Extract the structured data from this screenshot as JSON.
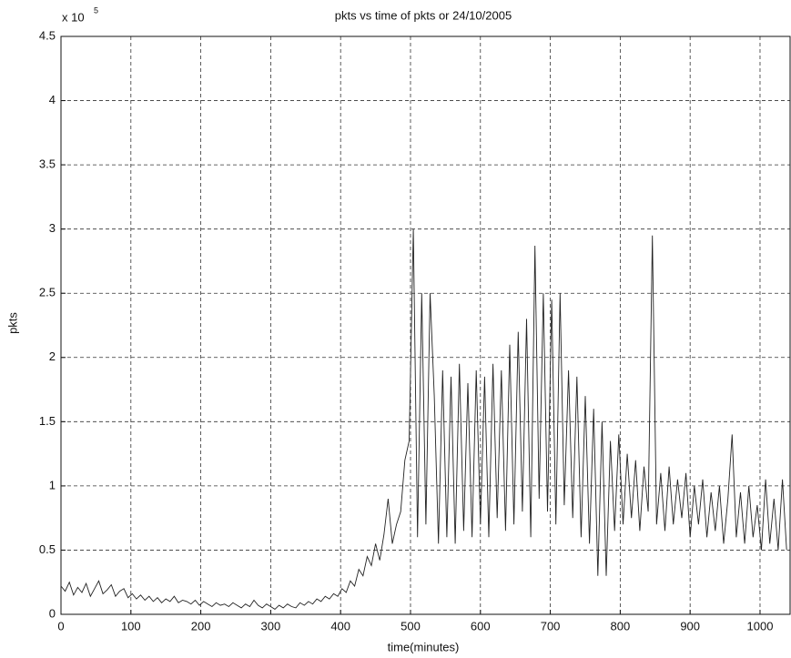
{
  "chart_data": {
    "type": "line",
    "title": "pkts vs time of pkts or 24/10/2005",
    "xlabel": "time(minutes)",
    "ylabel": "pkts",
    "y_multiplier": "x 10",
    "y_exponent": 5,
    "grid": true,
    "xlim": [
      0,
      1043
    ],
    "ylim": [
      0,
      4.5
    ],
    "xticks": [
      0,
      100,
      200,
      300,
      400,
      500,
      600,
      700,
      800,
      900,
      1000
    ],
    "yticks": [
      0,
      0.5,
      1,
      1.5,
      2,
      2.5,
      3,
      3.5,
      4,
      4.5
    ],
    "x": [
      0,
      6,
      12,
      18,
      24,
      30,
      36,
      42,
      48,
      54,
      60,
      66,
      72,
      78,
      84,
      90,
      96,
      102,
      108,
      114,
      120,
      126,
      132,
      138,
      144,
      150,
      156,
      162,
      168,
      174,
      180,
      186,
      192,
      198,
      204,
      210,
      216,
      222,
      228,
      234,
      240,
      246,
      252,
      258,
      264,
      270,
      276,
      282,
      288,
      294,
      300,
      306,
      312,
      318,
      324,
      330,
      336,
      342,
      348,
      354,
      360,
      366,
      372,
      378,
      384,
      390,
      396,
      402,
      408,
      414,
      420,
      426,
      432,
      438,
      444,
      450,
      456,
      462,
      468,
      474,
      480,
      486,
      492,
      498,
      504,
      510,
      516,
      522,
      528,
      534,
      540,
      546,
      552,
      558,
      564,
      570,
      576,
      582,
      588,
      594,
      600,
      606,
      612,
      618,
      624,
      630,
      636,
      642,
      648,
      654,
      660,
      666,
      672,
      678,
      684,
      690,
      696,
      702,
      708,
      714,
      720,
      726,
      732,
      738,
      744,
      750,
      756,
      762,
      768,
      774,
      780,
      786,
      792,
      798,
      804,
      810,
      816,
      822,
      828,
      834,
      840,
      846,
      852,
      858,
      864,
      870,
      876,
      882,
      888,
      894,
      900,
      906,
      912,
      918,
      924,
      930,
      936,
      942,
      948,
      954,
      960,
      966,
      972,
      978,
      984,
      990,
      996,
      1002,
      1008,
      1014,
      1020,
      1026,
      1032,
      1038
    ],
    "series": [
      {
        "name": "pkts",
        "color": "#222222",
        "values": [
          0.22,
          0.18,
          0.25,
          0.15,
          0.21,
          0.17,
          0.24,
          0.14,
          0.2,
          0.26,
          0.16,
          0.19,
          0.23,
          0.14,
          0.18,
          0.2,
          0.13,
          0.16,
          0.12,
          0.15,
          0.11,
          0.14,
          0.1,
          0.13,
          0.09,
          0.12,
          0.1,
          0.14,
          0.09,
          0.11,
          0.1,
          0.08,
          0.11,
          0.07,
          0.1,
          0.08,
          0.06,
          0.09,
          0.07,
          0.08,
          0.06,
          0.09,
          0.07,
          0.05,
          0.08,
          0.06,
          0.11,
          0.07,
          0.05,
          0.08,
          0.06,
          0.04,
          0.07,
          0.05,
          0.08,
          0.06,
          0.05,
          0.09,
          0.07,
          0.1,
          0.08,
          0.12,
          0.1,
          0.14,
          0.12,
          0.16,
          0.14,
          0.2,
          0.17,
          0.26,
          0.22,
          0.35,
          0.3,
          0.45,
          0.38,
          0.55,
          0.42,
          0.62,
          0.9,
          0.55,
          0.7,
          0.8,
          1.2,
          1.35,
          3.0,
          0.6,
          2.5,
          0.7,
          2.5,
          1.7,
          0.55,
          1.9,
          0.6,
          1.85,
          0.55,
          1.95,
          0.65,
          1.8,
          0.6,
          1.9,
          0.7,
          1.85,
          0.6,
          1.95,
          0.75,
          1.9,
          0.65,
          2.1,
          0.7,
          2.2,
          0.8,
          2.3,
          0.6,
          2.87,
          0.9,
          2.5,
          0.8,
          2.45,
          0.7,
          2.5,
          0.85,
          1.9,
          0.75,
          1.85,
          0.6,
          1.7,
          0.55,
          1.6,
          0.3,
          1.5,
          0.3,
          1.35,
          0.65,
          1.4,
          0.7,
          1.25,
          0.75,
          1.2,
          0.65,
          1.15,
          0.8,
          2.95,
          0.7,
          1.1,
          0.65,
          1.15,
          0.7,
          1.05,
          0.75,
          1.1,
          0.6,
          1.0,
          0.7,
          1.05,
          0.6,
          0.95,
          0.65,
          1.0,
          0.55,
          0.9,
          1.4,
          0.6,
          0.95,
          0.55,
          1.0,
          0.6,
          0.85,
          0.5,
          1.05,
          0.55,
          0.9,
          0.5,
          1.05,
          0.5
        ]
      }
    ]
  }
}
